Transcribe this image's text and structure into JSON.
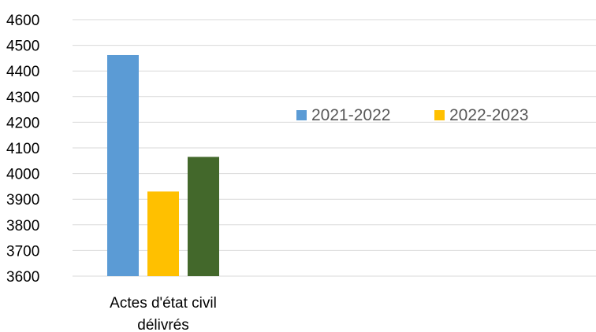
{
  "chart_data": {
    "type": "bar",
    "categories": [
      "Actes d'état civil délivrés"
    ],
    "category_label_lines": [
      "Actes d'état civil",
      "délivrés"
    ],
    "series": [
      {
        "name": "2021-2022",
        "values": [
          4462
        ],
        "color": "#5b9bd5"
      },
      {
        "name": "2022-2023",
        "values": [
          3930
        ],
        "color": "#ffc000"
      },
      {
        "values": [
          4065
        ],
        "color": "#43682b"
      }
    ],
    "yticks": [
      3600,
      3700,
      3800,
      3900,
      4000,
      4100,
      4200,
      4300,
      4400,
      4500,
      4600
    ],
    "ylim": [
      3600,
      4600
    ],
    "grid": true,
    "legend_position": "right",
    "title": "",
    "xlabel": "",
    "ylabel": ""
  }
}
